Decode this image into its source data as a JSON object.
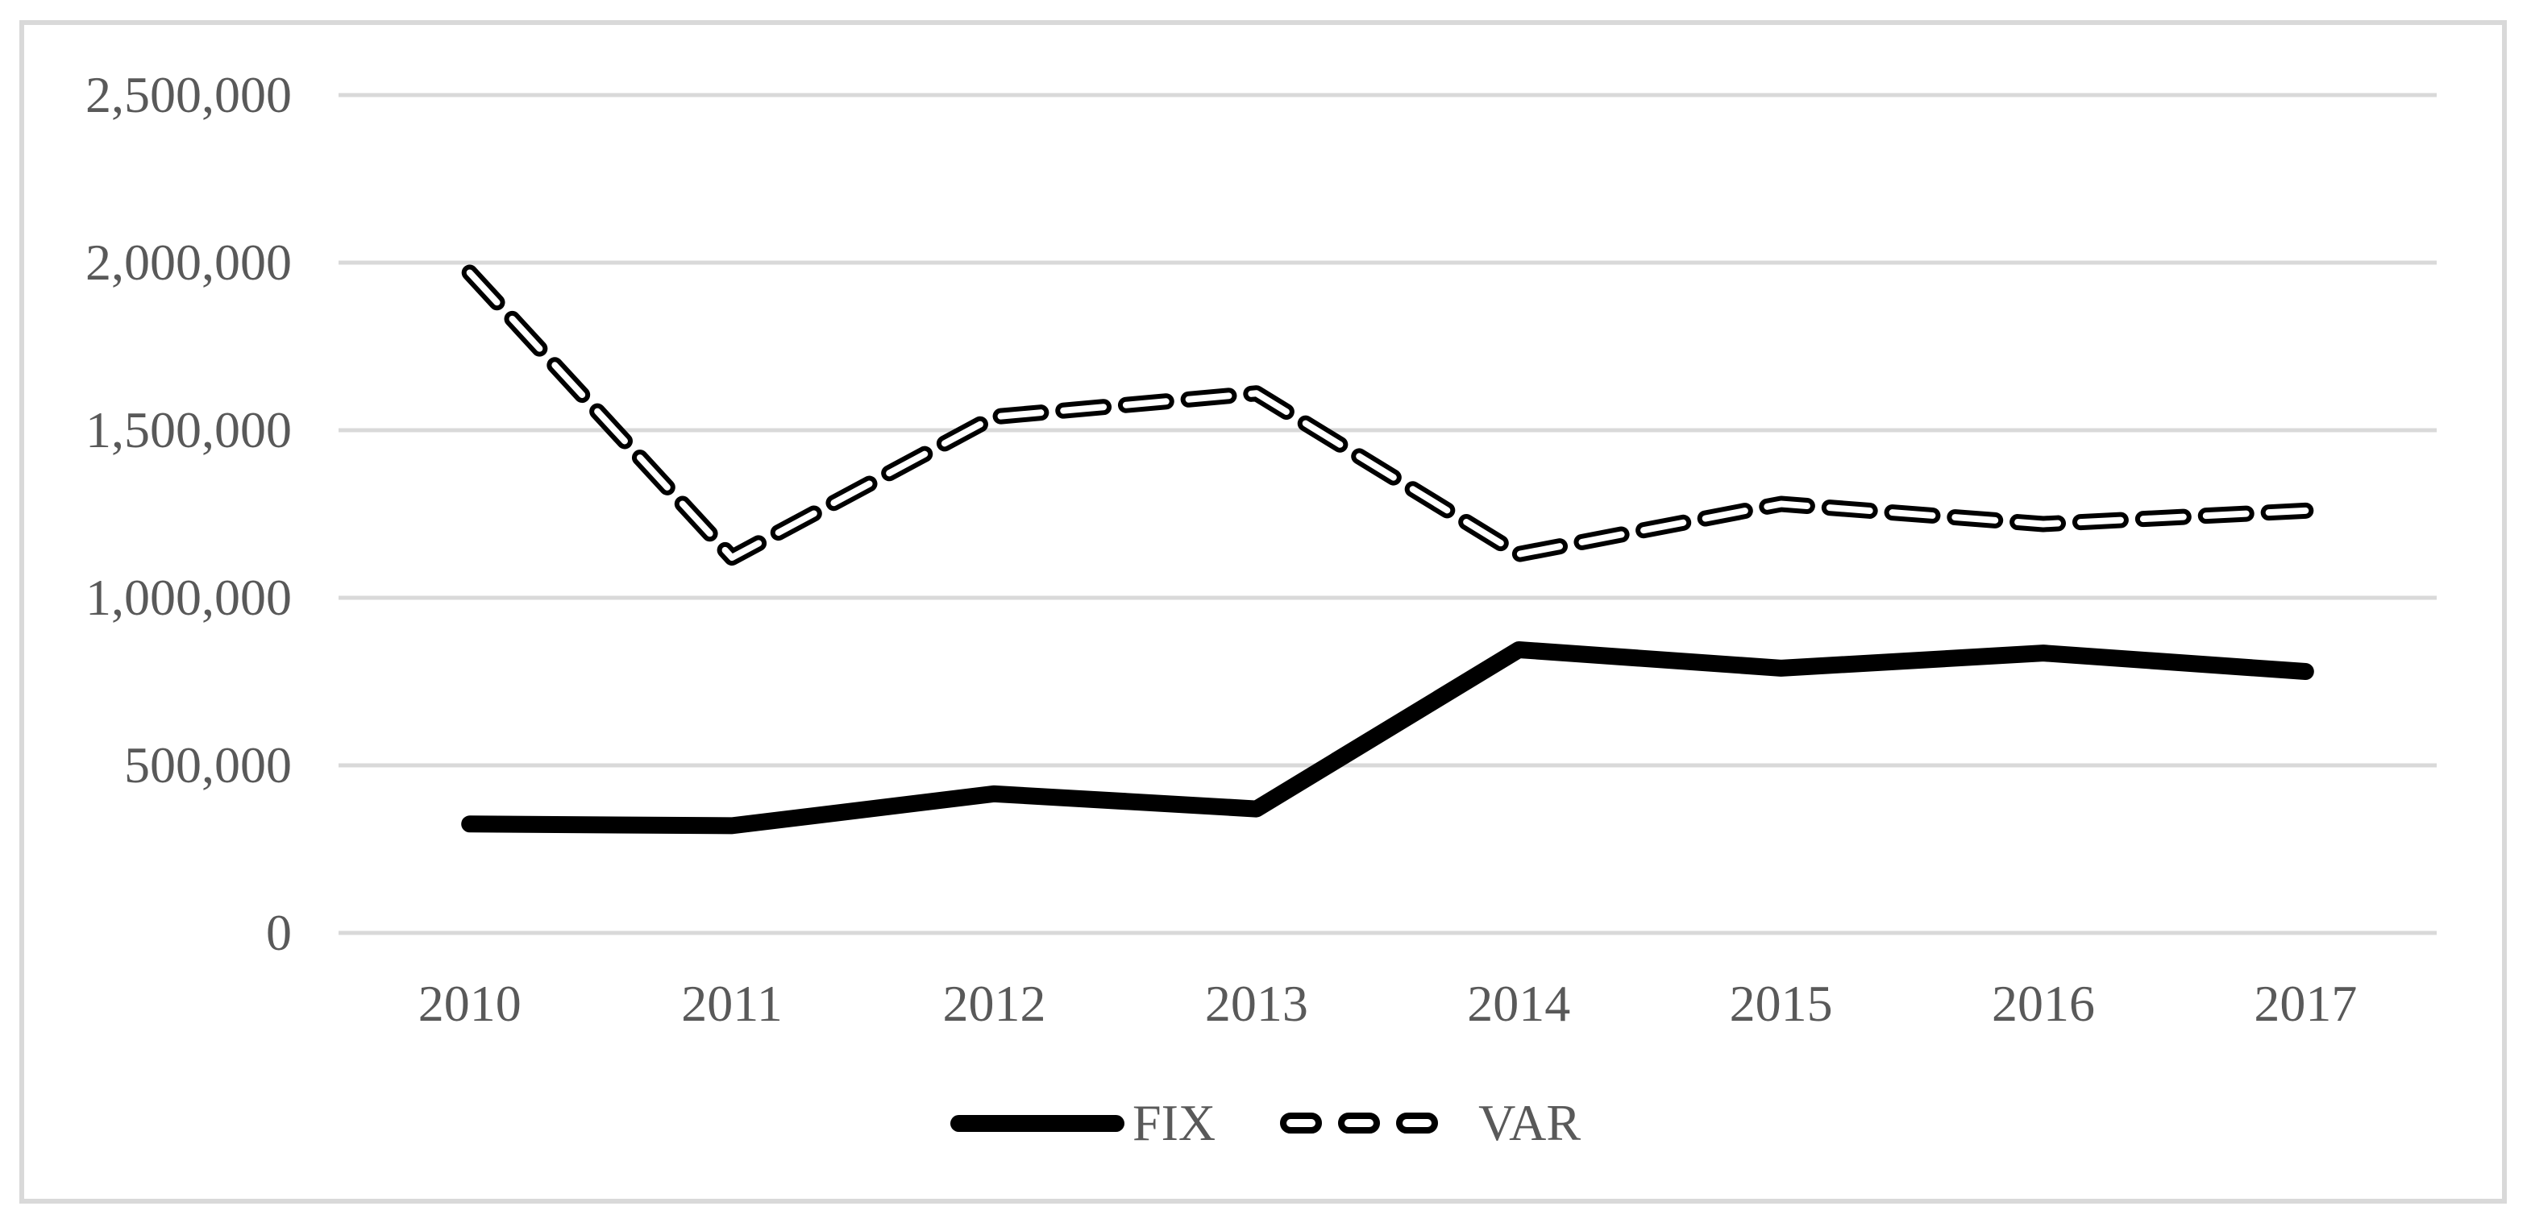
{
  "chart_data": {
    "type": "line",
    "title": "",
    "categories": [
      "2010",
      "2011",
      "2012",
      "2013",
      "2014",
      "2015",
      "2016",
      "2017"
    ],
    "series": [
      {
        "name": "FIX",
        "style": "solid",
        "color": "#000000",
        "values": [
          325000,
          320000,
          415000,
          370000,
          845000,
          790000,
          835000,
          780000
        ]
      },
      {
        "name": "VAR",
        "style": "dashed",
        "color": "#000000",
        "values": [
          1970000,
          1120000,
          1540000,
          1610000,
          1130000,
          1280000,
          1220000,
          1260000
        ]
      }
    ],
    "xlabel": "",
    "ylabel": "",
    "ylim": [
      0,
      2500000
    ],
    "ytick_step": 500000,
    "yticks": [
      {
        "value": 0,
        "label": "0"
      },
      {
        "value": 500000,
        "label": "500,000"
      },
      {
        "value": 1000000,
        "label": "1,000,000"
      },
      {
        "value": 1500000,
        "label": "1,500,000"
      },
      {
        "value": 2000000,
        "label": "2,000,000"
      },
      {
        "value": 2500000,
        "label": "2,500,000"
      }
    ],
    "grid": "horizontal",
    "legend_position": "bottom"
  },
  "colors": {
    "background": "#ffffff",
    "frame_border": "#d9d9d9",
    "grid": "#d9d9d9",
    "axis_text": "#595959",
    "line": "#000000",
    "dash_core": "#ffffff"
  }
}
